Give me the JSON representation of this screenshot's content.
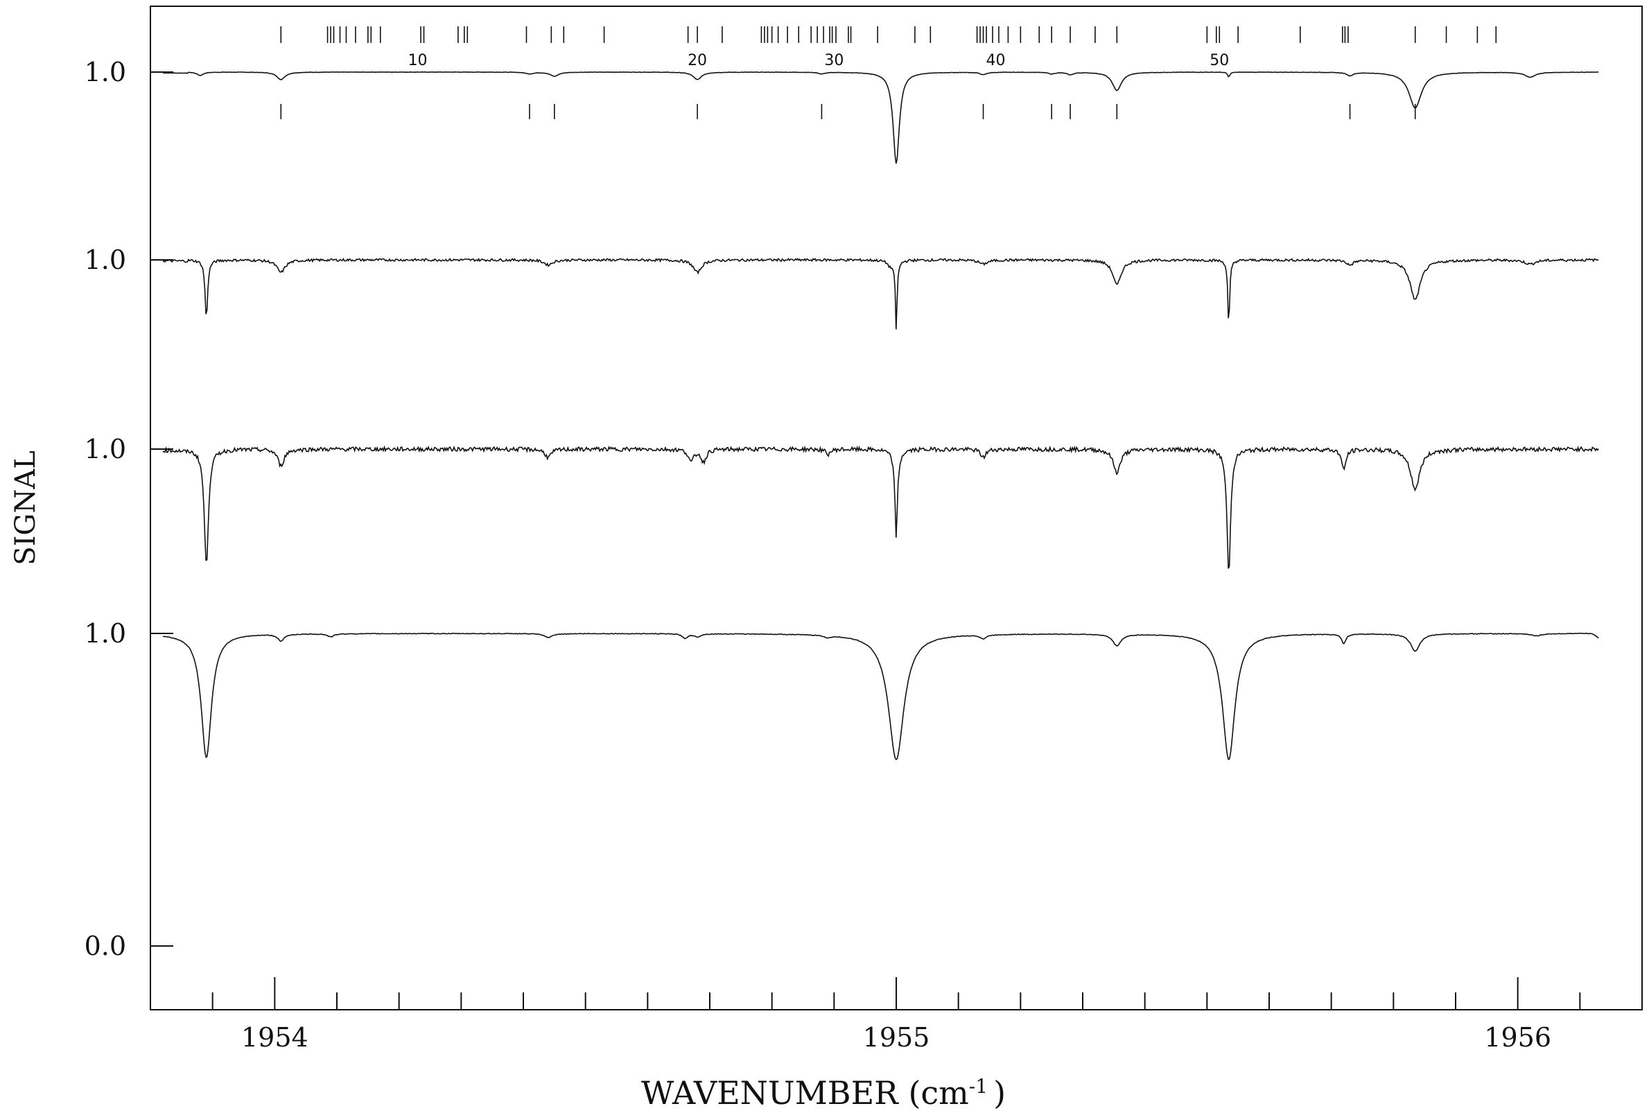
{
  "chart_data": {
    "type": "line",
    "xlabel": "WAVENUMBER (cm",
    "xlabel_exponent": "-1",
    "xlabel_suffix": ")",
    "ylabel": "SIGNAL",
    "xlim": [
      1953.8,
      1956.2
    ],
    "x_ticks_major": [
      "1954",
      "1955",
      "1956"
    ],
    "x_ticks_minor_step": 0.1,
    "offset_ylabels": [
      "1.0",
      "1.0",
      "1.0",
      "1.0",
      "0.0"
    ],
    "line_numbers": [
      "10",
      "20",
      "30",
      "40",
      "50"
    ],
    "grid": false,
    "legend": "none",
    "line_color": "#111111",
    "series": [
      {
        "trace": 1,
        "baseline": 1.0,
        "noise": 0.002,
        "dips": [
          {
            "x": 1953.88,
            "depth": 0.04,
            "width": 0.006
          },
          {
            "x": 1954.01,
            "depth": 0.09,
            "width": 0.008
          },
          {
            "x": 1954.41,
            "depth": 0.02,
            "width": 0.008
          },
          {
            "x": 1954.45,
            "depth": 0.05,
            "width": 0.008
          },
          {
            "x": 1954.68,
            "depth": 0.09,
            "width": 0.008
          },
          {
            "x": 1954.88,
            "depth": 0.02,
            "width": 0.006
          },
          {
            "x": 1955.0,
            "depth": 1.1,
            "width": 0.006
          },
          {
            "x": 1955.14,
            "depth": 0.03,
            "width": 0.006
          },
          {
            "x": 1955.25,
            "depth": 0.02,
            "width": 0.006
          },
          {
            "x": 1955.28,
            "depth": 0.03,
            "width": 0.006
          },
          {
            "x": 1955.355,
            "depth": 0.22,
            "width": 0.009
          },
          {
            "x": 1955.535,
            "depth": 0.06,
            "width": 0.002
          },
          {
            "x": 1955.73,
            "depth": 0.04,
            "width": 0.006
          },
          {
            "x": 1955.835,
            "depth": 0.43,
            "width": 0.012
          },
          {
            "x": 1956.02,
            "depth": 0.06,
            "width": 0.01
          }
        ],
        "tail": {
          "start": 1956.13,
          "depth": 0.12
        }
      },
      {
        "trace": 2,
        "baseline": 1.0,
        "noise": 0.015,
        "dips": [
          {
            "x": 1953.89,
            "depth": 0.7,
            "width": 0.0025
          },
          {
            "x": 1954.01,
            "depth": 0.15,
            "width": 0.008
          },
          {
            "x": 1954.44,
            "depth": 0.06,
            "width": 0.008
          },
          {
            "x": 1954.68,
            "depth": 0.15,
            "width": 0.008
          },
          {
            "x": 1954.99,
            "depth": 0.06,
            "width": 0.005
          },
          {
            "x": 1955.0,
            "depth": 0.25,
            "width": 0.003
          },
          {
            "x": 1955.0,
            "depth": 0.6,
            "width": 0.0012
          },
          {
            "x": 1955.14,
            "depth": 0.05,
            "width": 0.008
          },
          {
            "x": 1955.355,
            "depth": 0.3,
            "width": 0.008
          },
          {
            "x": 1955.535,
            "depth": 0.8,
            "width": 0.0018
          },
          {
            "x": 1955.73,
            "depth": 0.06,
            "width": 0.006
          },
          {
            "x": 1955.835,
            "depth": 0.48,
            "width": 0.01
          },
          {
            "x": 1956.02,
            "depth": 0.05,
            "width": 0.01
          }
        ],
        "tail": {
          "start": 1956.13,
          "depth": 0.2
        }
      },
      {
        "trace": 3,
        "baseline": 1.0,
        "noise": 0.025,
        "dips": [
          {
            "x": 1953.89,
            "depth": 1.4,
            "width": 0.004
          },
          {
            "x": 1954.01,
            "depth": 0.2,
            "width": 0.006
          },
          {
            "x": 1954.44,
            "depth": 0.1,
            "width": 0.006
          },
          {
            "x": 1954.67,
            "depth": 0.15,
            "width": 0.005
          },
          {
            "x": 1954.69,
            "depth": 0.15,
            "width": 0.005
          },
          {
            "x": 1954.89,
            "depth": 0.06,
            "width": 0.005
          },
          {
            "x": 1955.0,
            "depth": 0.5,
            "width": 0.004
          },
          {
            "x": 1955.0,
            "depth": 0.6,
            "width": 0.0015
          },
          {
            "x": 1955.14,
            "depth": 0.1,
            "width": 0.005
          },
          {
            "x": 1955.355,
            "depth": 0.28,
            "width": 0.007
          },
          {
            "x": 1955.535,
            "depth": 1.5,
            "width": 0.0035
          },
          {
            "x": 1955.72,
            "depth": 0.25,
            "width": 0.004
          },
          {
            "x": 1955.835,
            "depth": 0.48,
            "width": 0.009
          }
        ],
        "tail": {
          "start": 1956.13,
          "depth": 0.2
        }
      },
      {
        "trace": 4,
        "baseline": 1.0,
        "noise": 0.008,
        "dips": [
          {
            "x": 1953.89,
            "depth": 3.2,
            "width": 0.01
          },
          {
            "x": 1954.01,
            "depth": 0.18,
            "width": 0.006
          },
          {
            "x": 1954.09,
            "depth": 0.08,
            "width": 0.006
          },
          {
            "x": 1954.44,
            "depth": 0.1,
            "width": 0.008
          },
          {
            "x": 1954.66,
            "depth": 0.12,
            "width": 0.005
          },
          {
            "x": 1954.68,
            "depth": 0.08,
            "width": 0.006
          },
          {
            "x": 1954.89,
            "depth": 0.06,
            "width": 0.006
          },
          {
            "x": 1955.0,
            "depth": 3.25,
            "width": 0.015
          },
          {
            "x": 1955.14,
            "depth": 0.1,
            "width": 0.006
          },
          {
            "x": 1955.355,
            "depth": 0.3,
            "width": 0.008
          },
          {
            "x": 1955.535,
            "depth": 3.25,
            "width": 0.012
          },
          {
            "x": 1955.72,
            "depth": 0.25,
            "width": 0.004
          },
          {
            "x": 1955.835,
            "depth": 0.45,
            "width": 0.009
          },
          {
            "x": 1956.03,
            "depth": 0.06,
            "width": 0.01
          }
        ],
        "tail": {
          "start": 1956.12,
          "depth": 0.2
        }
      }
    ],
    "top_marker_positions": [
      1954.01,
      1954.085,
      1954.09,
      1954.095,
      1954.105,
      1954.115,
      1954.13,
      1954.15,
      1954.155,
      1954.17,
      1954.235,
      1954.24,
      1954.295,
      1954.305,
      1954.31,
      1954.405,
      1954.445,
      1954.465,
      1954.53,
      1954.665,
      1954.68,
      1954.72,
      1954.783,
      1954.788,
      1954.793,
      1954.8,
      1954.81,
      1954.825,
      1954.843,
      1954.863,
      1954.873,
      1954.883,
      1954.893,
      1954.897,
      1954.903,
      1954.923,
      1954.927,
      1954.97,
      1955.03,
      1955.055,
      1955.13,
      1955.135,
      1955.14,
      1955.145,
      1955.155,
      1955.165,
      1955.18,
      1955.2,
      1955.23,
      1955.25,
      1955.28,
      1955.32,
      1955.355,
      1955.5,
      1955.515,
      1955.52,
      1955.55,
      1955.65,
      1955.718,
      1955.722,
      1955.727,
      1955.835,
      1955.885,
      1955.935,
      1955.965
    ]
  }
}
